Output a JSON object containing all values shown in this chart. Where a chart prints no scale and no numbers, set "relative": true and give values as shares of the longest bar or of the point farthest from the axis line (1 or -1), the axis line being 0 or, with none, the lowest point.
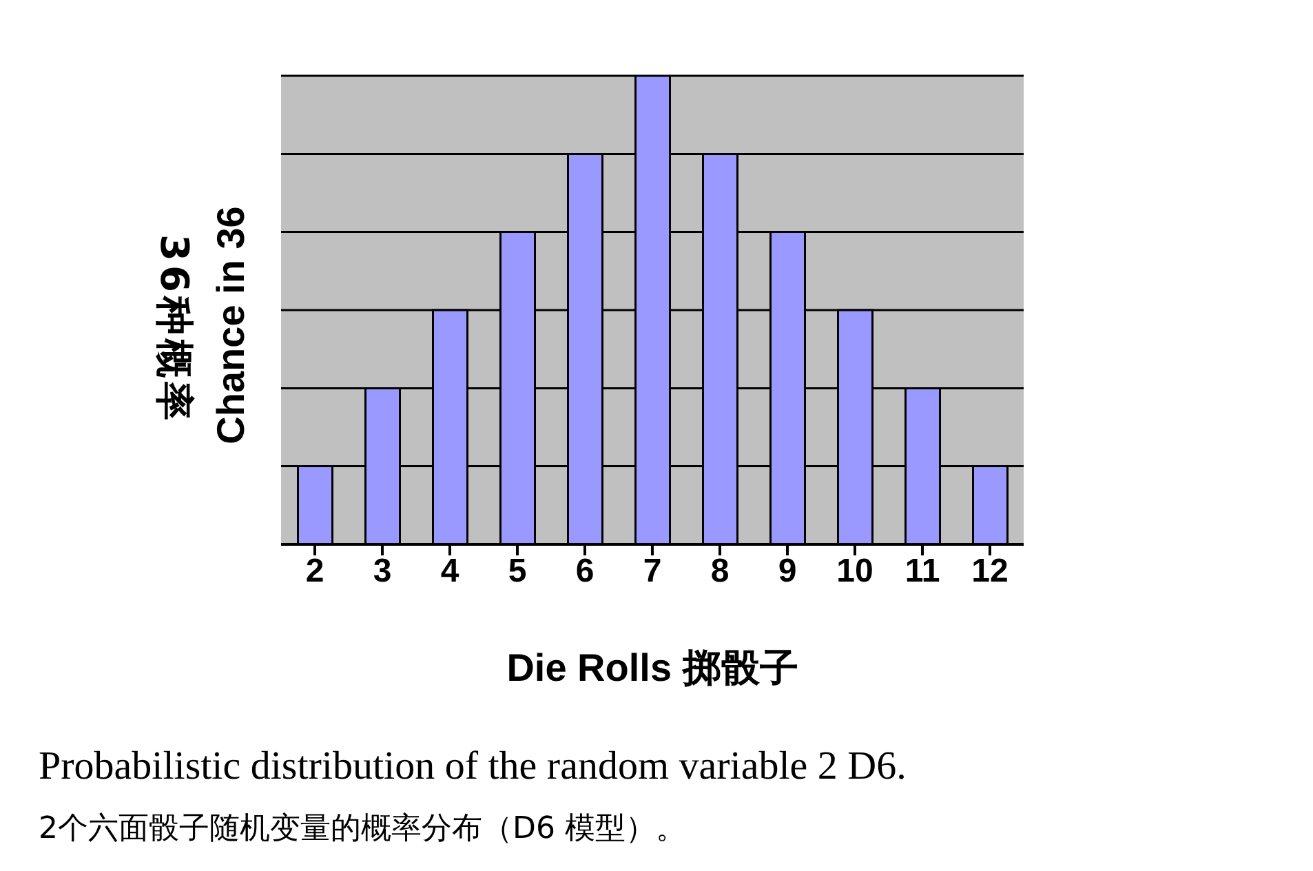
{
  "chart_data": {
    "type": "bar",
    "categories": [
      "2",
      "3",
      "4",
      "5",
      "6",
      "7",
      "8",
      "9",
      "10",
      "11",
      "12"
    ],
    "values": [
      0.167,
      0.333,
      0.5,
      0.667,
      0.833,
      1,
      0.833,
      0.667,
      0.5,
      0.333,
      0.167
    ],
    "relative": true,
    "color": "#9999ff",
    "grid": "y",
    "xlabel": "Die Rolls 掷骰子",
    "ylabel": "Chance in 36\n36种概率",
    "annotations": [
      "Probabilistic distribution of the random variable 2 D6.",
      "2个六面骰子随机变量的概率分布（D6 模型）。"
    ]
  }
}
